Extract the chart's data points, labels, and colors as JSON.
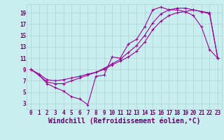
{
  "xlabel": "Windchill (Refroidissement éolien,°C)",
  "bg_color": "#c8eef0",
  "line_color": "#990099",
  "grid_color": "#b0d0d4",
  "xlim": [
    -0.5,
    23.5
  ],
  "ylim": [
    2.0,
    20.5
  ],
  "xticks": [
    0,
    1,
    2,
    3,
    4,
    5,
    6,
    7,
    8,
    9,
    10,
    11,
    12,
    13,
    14,
    15,
    16,
    17,
    18,
    19,
    20,
    21,
    22,
    23
  ],
  "yticks": [
    3,
    5,
    7,
    9,
    11,
    13,
    15,
    17,
    19
  ],
  "line1_x": [
    0,
    1,
    2,
    3,
    4,
    5,
    6,
    7,
    8,
    9,
    10,
    11,
    12,
    13,
    14,
    15,
    16,
    17,
    18,
    19,
    20,
    21,
    22,
    23
  ],
  "line1_y": [
    9.0,
    8.0,
    6.5,
    5.8,
    5.2,
    4.2,
    3.8,
    2.8,
    7.8,
    8.0,
    11.2,
    11.0,
    13.5,
    14.3,
    16.5,
    19.5,
    20.0,
    19.5,
    19.5,
    19.2,
    18.5,
    16.5,
    12.5,
    11.0
  ],
  "line2_x": [
    0,
    1,
    2,
    3,
    4,
    5,
    6,
    7,
    8,
    9,
    10,
    11,
    12,
    13,
    14,
    15,
    16,
    17,
    18,
    19,
    20,
    21,
    22,
    23
  ],
  "line2_y": [
    9.0,
    8.0,
    6.8,
    6.5,
    6.5,
    7.0,
    7.5,
    8.0,
    8.5,
    9.2,
    10.0,
    10.8,
    12.0,
    13.2,
    15.0,
    17.2,
    18.8,
    19.5,
    19.8,
    19.8,
    19.5,
    19.2,
    19.0,
    11.0
  ],
  "line3_x": [
    0,
    1,
    2,
    3,
    4,
    5,
    6,
    7,
    8,
    9,
    10,
    11,
    12,
    13,
    14,
    15,
    16,
    17,
    18,
    19,
    20,
    21,
    22,
    23
  ],
  "line3_y": [
    9.0,
    8.2,
    7.2,
    7.0,
    7.2,
    7.5,
    7.8,
    8.2,
    8.5,
    9.0,
    9.8,
    10.5,
    11.2,
    12.2,
    13.8,
    16.0,
    17.5,
    18.5,
    19.0,
    19.2,
    19.5,
    19.2,
    18.8,
    11.0
  ],
  "font_color": "#660066",
  "tick_fontsize": 5.5,
  "label_fontsize": 7.0
}
